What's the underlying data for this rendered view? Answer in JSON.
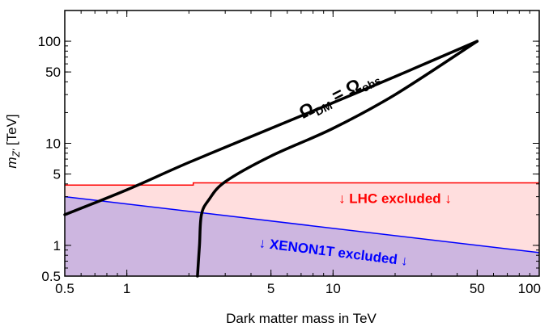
{
  "chart_data": {
    "type": "line",
    "xlabel": "Dark matter mass in TeV",
    "ylabel_main": "m",
    "ylabel_sub": "Z'",
    "ylabel_unit": " [TeV]",
    "xscale": "log",
    "yscale": "log",
    "xlim": [
      0.5,
      100
    ],
    "ylim": [
      0.5,
      200
    ],
    "xticks": [
      {
        "value": 0.5,
        "label": "0.5"
      },
      {
        "value": 1,
        "label": "1"
      },
      {
        "value": 5,
        "label": "5"
      },
      {
        "value": 10,
        "label": "10"
      },
      {
        "value": 50,
        "label": "50"
      },
      {
        "value": 100,
        "label": "100"
      }
    ],
    "yticks": [
      {
        "value": 0.5,
        "label": "0.5"
      },
      {
        "value": 1,
        "label": "1"
      },
      {
        "value": 5,
        "label": "5"
      },
      {
        "value": 10,
        "label": "10"
      },
      {
        "value": 50,
        "label": "50"
      },
      {
        "value": 100,
        "label": "100"
      }
    ],
    "series": [
      {
        "role": "relic-upper",
        "color": "#000000",
        "points": [
          [
            0.5,
            2.0
          ],
          [
            1,
            3.5
          ],
          [
            2,
            6.5
          ],
          [
            5,
            14
          ],
          [
            10,
            25
          ],
          [
            20,
            45
          ],
          [
            50,
            100
          ]
        ]
      },
      {
        "role": "relic-lower",
        "color": "#000000",
        "points": [
          [
            2.2,
            0.5
          ],
          [
            2.25,
            1.0
          ],
          [
            2.3,
            2.0
          ],
          [
            2.5,
            2.8
          ],
          [
            3,
            4.2
          ],
          [
            5,
            7.5
          ],
          [
            10,
            14
          ],
          [
            20,
            30
          ],
          [
            50,
            100
          ]
        ]
      }
    ],
    "regions": [
      {
        "role": "lhc",
        "label": "↓ LHC excluded ↓",
        "color": "#ff0000",
        "fill": "#ffdede",
        "boundary": [
          [
            0.5,
            3.9
          ],
          [
            2.1,
            3.9
          ],
          [
            2.1,
            4.1
          ],
          [
            100,
            4.1
          ]
        ],
        "label_at": [
          20,
          2.6
        ]
      },
      {
        "role": "xenon",
        "label": "↓ XENON1T excluded ↓",
        "color": "#0000ff",
        "fill": "#cdb6e0",
        "boundary": [
          [
            0.5,
            3.0
          ],
          [
            100,
            0.85
          ]
        ],
        "label_at": [
          10,
          0.78
        ],
        "label_rotation_deg": 7
      }
    ],
    "annotations": [
      {
        "text": "Ω",
        "sub": "DM",
        "eq": " = ",
        "text2": "Ω",
        "sub2": "obs",
        "x": 11,
        "y": 27,
        "rotation_deg": -27
      }
    ],
    "grid": false,
    "frame": true
  }
}
